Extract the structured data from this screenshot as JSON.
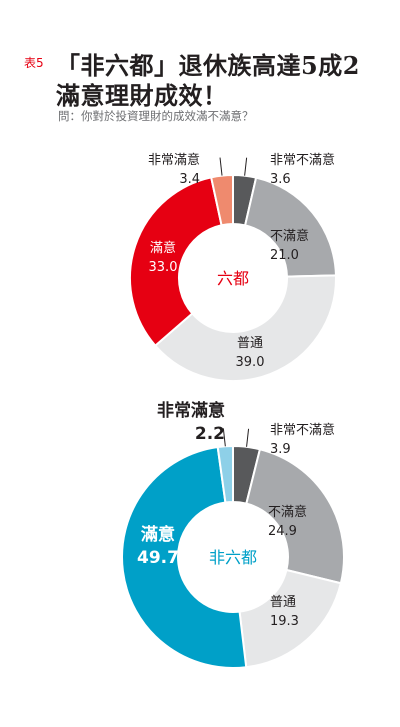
{
  "header": {
    "table_tag": "表5",
    "title_line1": "「非六都」退休族高達5成2",
    "title_line2": "滿意理財成效！",
    "question": "問：你對於投資理財的成效滿不滿意？"
  },
  "colors": {
    "red": "#e60012",
    "salmon": "#ef8a6e",
    "blue": "#00a0c8",
    "lightblue": "#8ed0e8",
    "darkgray": "#58595b",
    "gray": "#a7a9ac",
    "lightgray": "#e6e7e8"
  },
  "chart_data": [
    {
      "type": "pie",
      "center_label": "六都",
      "categories": [
        "非常不滿意",
        "不滿意",
        "普通",
        "滿意",
        "非常滿意"
      ],
      "values": [
        3.6,
        21.0,
        39.0,
        33.0,
        3.4
      ],
      "value_labels": [
        "3.6",
        "21.0",
        "39.0",
        "33.0",
        "3.4"
      ],
      "colors": [
        "#58595b",
        "#a7a9ac",
        "#e6e7e8",
        "#e60012",
        "#ef8a6e"
      ]
    },
    {
      "type": "pie",
      "center_label": "非六都",
      "categories": [
        "非常不滿意",
        "不滿意",
        "普通",
        "滿意",
        "非常滿意"
      ],
      "values": [
        3.9,
        24.9,
        19.3,
        49.7,
        2.2
      ],
      "value_labels": [
        "3.9",
        "24.9",
        "19.3",
        "49.7",
        "2.2"
      ],
      "colors": [
        "#58595b",
        "#a7a9ac",
        "#e6e7e8",
        "#00a0c8",
        "#8ed0e8"
      ]
    }
  ]
}
